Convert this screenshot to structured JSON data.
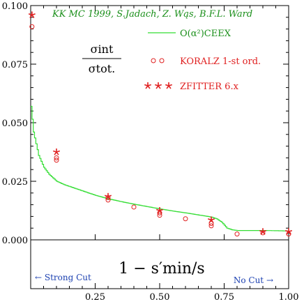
{
  "chart_data": {
    "type": "line",
    "title": "KK MC 1999, S.Jadach, Z. Wąs, B.F.L. Ward",
    "ratio_label": {
      "numerator": "σint",
      "denominator": "σtot."
    },
    "xlabel": "1 − s′min/s",
    "notes": {
      "left": "← Strong Cut",
      "right": "No Cut →"
    },
    "xlim": [
      0.0,
      1.0
    ],
    "ylim": [
      0.0,
      0.1
    ],
    "yticks": [
      "0.000",
      "0.025",
      "0.050",
      "0.075",
      "0.100"
    ],
    "xticks": [
      "0.25",
      "0.50",
      "0.75",
      "1.00"
    ],
    "grid": false,
    "legend_position": "top-right",
    "series": [
      {
        "name": "O(α²)CEEX",
        "style": "step-line",
        "color": "#33dd33",
        "x": [
          0.0,
          0.01,
          0.02,
          0.03,
          0.05,
          0.07,
          0.1,
          0.13,
          0.17,
          0.21,
          0.25,
          0.3,
          0.35,
          0.4,
          0.45,
          0.5,
          0.55,
          0.6,
          0.65,
          0.68,
          0.7,
          0.72,
          0.74,
          0.76,
          0.78,
          0.8,
          0.85,
          0.9,
          0.95,
          1.0
        ],
        "y": [
          0.057,
          0.046,
          0.041,
          0.036,
          0.031,
          0.028,
          0.025,
          0.0235,
          0.022,
          0.0205,
          0.019,
          0.0175,
          0.0163,
          0.0152,
          0.0142,
          0.0132,
          0.0123,
          0.0115,
          0.0106,
          0.0101,
          0.0097,
          0.009,
          0.0075,
          0.005,
          0.0043,
          0.004,
          0.004,
          0.004,
          0.0039,
          0.0038
        ]
      },
      {
        "name": "KORALZ 1-st ord.",
        "style": "circle",
        "color": "#e02020",
        "x": [
          0.005,
          0.1,
          0.1,
          0.3,
          0.3,
          0.4,
          0.5,
          0.5,
          0.6,
          0.7,
          0.7,
          0.8,
          0.9,
          1.0
        ],
        "y": [
          0.091,
          0.035,
          0.034,
          0.018,
          0.017,
          0.014,
          0.0115,
          0.0105,
          0.009,
          0.007,
          0.006,
          0.0025,
          0.003,
          0.0025
        ]
      },
      {
        "name": "ZFITTER 6.x",
        "style": "star",
        "color": "#e02020",
        "x": [
          0.005,
          0.1,
          0.3,
          0.5,
          0.7,
          0.9,
          1.0
        ],
        "y": [
          0.096,
          0.0375,
          0.0185,
          0.0125,
          0.0085,
          0.0035,
          0.0035
        ]
      }
    ]
  }
}
